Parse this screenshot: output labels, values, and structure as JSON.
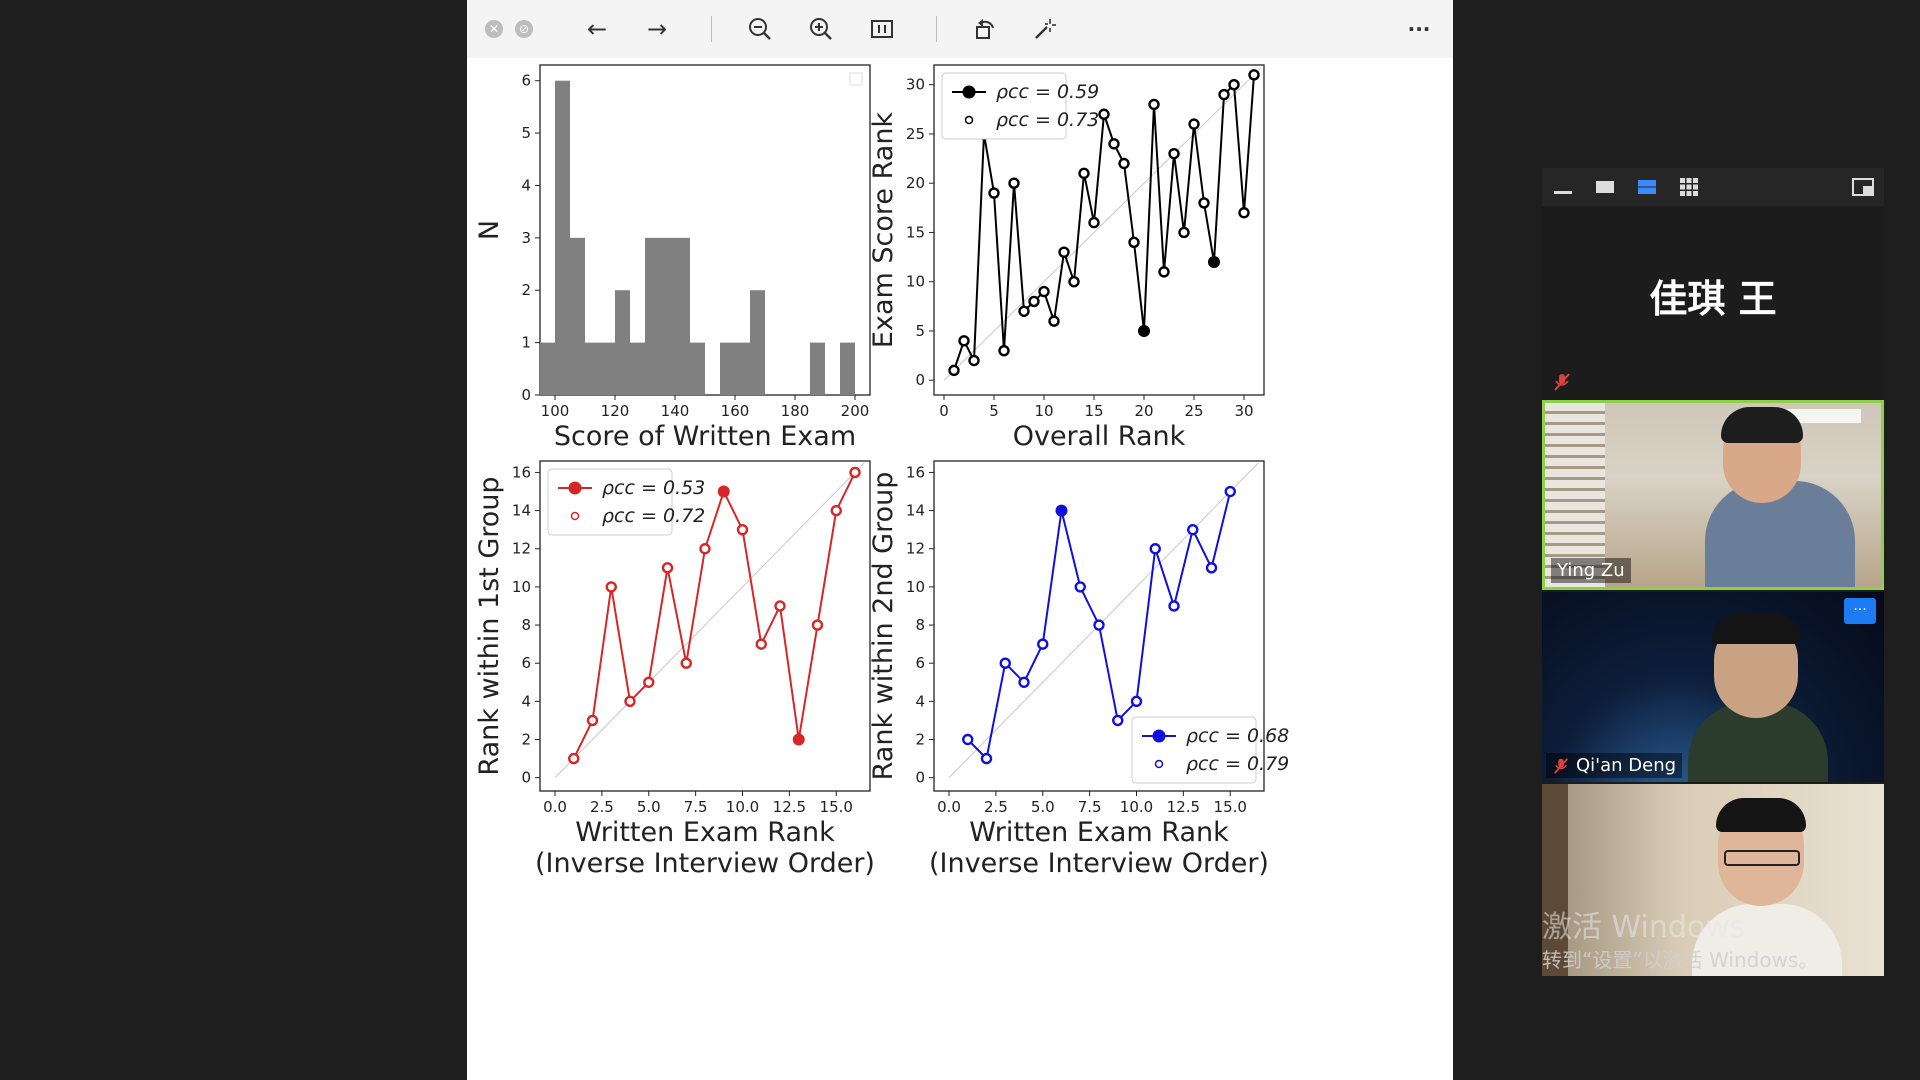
{
  "toolbar": {
    "items": [
      "close-window",
      "minimize-window",
      "back",
      "forward",
      "zoom-out",
      "zoom-in",
      "fit-page",
      "rotate",
      "magic-wand",
      "more"
    ],
    "more_glyph": "···"
  },
  "charts": {
    "histogram": {
      "type": "bar",
      "xlabel": "Score of Written Exam",
      "ylabel": "N",
      "xlim": [
        95,
        205
      ],
      "ylim": [
        0,
        6.3
      ],
      "xticks": [
        100,
        120,
        140,
        160,
        180,
        200
      ],
      "yticks": [
        0,
        1,
        2,
        3,
        4,
        5,
        6
      ],
      "bin_width": 5,
      "bins": [
        {
          "x": 95,
          "v": 1
        },
        {
          "x": 100,
          "v": 6
        },
        {
          "x": 105,
          "v": 3
        },
        {
          "x": 110,
          "v": 1
        },
        {
          "x": 115,
          "v": 1
        },
        {
          "x": 120,
          "v": 2
        },
        {
          "x": 125,
          "v": 1
        },
        {
          "x": 130,
          "v": 3
        },
        {
          "x": 135,
          "v": 3
        },
        {
          "x": 140,
          "v": 3
        },
        {
          "x": 145,
          "v": 1
        },
        {
          "x": 155,
          "v": 1
        },
        {
          "x": 160,
          "v": 1
        },
        {
          "x": 165,
          "v": 2
        },
        {
          "x": 185,
          "v": 1
        },
        {
          "x": 195,
          "v": 1
        }
      ],
      "color": "#808080"
    },
    "overall": {
      "type": "line",
      "xlabel": "Overall Rank",
      "ylabel": "Exam Score Rank",
      "xlim": [
        -1,
        32
      ],
      "ylim": [
        -1.5,
        32
      ],
      "xticks": [
        0,
        5,
        10,
        15,
        20,
        25,
        30
      ],
      "yticks": [
        0,
        5,
        10,
        15,
        20,
        25,
        30
      ],
      "x": [
        1,
        2,
        3,
        4,
        5,
        6,
        7,
        8,
        9,
        10,
        11,
        12,
        13,
        14,
        15,
        16,
        17,
        18,
        19,
        20,
        21,
        22,
        23,
        24,
        25,
        26,
        27,
        28,
        29,
        30,
        31
      ],
      "y": [
        1,
        4,
        2,
        25,
        19,
        3,
        20,
        7,
        8,
        9,
        6,
        13,
        10,
        21,
        16,
        27,
        24,
        22,
        14,
        5,
        28,
        11,
        23,
        15,
        26,
        18,
        12,
        29,
        30,
        17,
        31
      ],
      "filled": [
        4,
        20,
        27
      ],
      "color": "#000000",
      "legend": {
        "position": "top-left",
        "filled_label": "ρcc = 0.59",
        "open_label": "ρcc = 0.73"
      }
    },
    "group1": {
      "type": "line",
      "xlabel": "Written Exam Rank",
      "xlabel2": "(Inverse Interview Order)",
      "ylabel": "Rank within 1st Group",
      "xlim": [
        -0.8,
        16.8
      ],
      "ylim": [
        -0.7,
        16.6
      ],
      "xticks": [
        "0.0",
        "2.5",
        "5.0",
        "7.5",
        "10.0",
        "12.5",
        "15.0"
      ],
      "yticks": [
        0,
        2,
        4,
        6,
        8,
        10,
        12,
        14,
        16
      ],
      "x": [
        1,
        2,
        3,
        4,
        5,
        6,
        7,
        8,
        9,
        10,
        11,
        12,
        13,
        14,
        15,
        16
      ],
      "y": [
        1,
        3,
        10,
        4,
        5,
        11,
        6,
        12,
        15,
        13,
        7,
        9,
        2,
        8,
        14,
        16
      ],
      "filled": [
        9,
        13
      ],
      "color": "#d62728",
      "legend": {
        "position": "top-left",
        "filled_label": "ρcc = 0.53",
        "open_label": "ρcc = 0.72"
      }
    },
    "group2": {
      "type": "line",
      "xlabel": "Written Exam Rank",
      "xlabel2": "(Inverse Interview Order)",
      "ylabel": "Rank within 2nd Group",
      "xlim": [
        -0.8,
        16.8
      ],
      "ylim": [
        -0.7,
        16.6
      ],
      "xticks": [
        "0.0",
        "2.5",
        "5.0",
        "7.5",
        "10.0",
        "12.5",
        "15.0"
      ],
      "yticks": [
        0,
        2,
        4,
        6,
        8,
        10,
        12,
        14,
        16
      ],
      "x": [
        1,
        2,
        3,
        4,
        5,
        6,
        7,
        8,
        9,
        10,
        11,
        12,
        13,
        14,
        15
      ],
      "y": [
        2,
        1,
        6,
        5,
        7,
        14,
        10,
        8,
        3,
        4,
        12,
        9,
        13,
        11,
        15
      ],
      "filled": [
        6
      ],
      "color": "#1010dd",
      "legend": {
        "position": "bottom-right",
        "filled_label": "ρcc = 0.68",
        "open_label": "ρcc = 0.79"
      }
    }
  },
  "meeting": {
    "toolbar_items": [
      "minimize-icon",
      "speaker-view-icon",
      "gallery-strip-icon",
      "gallery-grid-icon",
      "exit-popout-icon"
    ],
    "participants": [
      {
        "name": "佳琪 王",
        "muted": true,
        "video": false
      },
      {
        "name": "Ying Zu",
        "muted": false,
        "video": true,
        "active_speaker": true
      },
      {
        "name": "Qi'an Deng",
        "muted": true,
        "video": true
      },
      {
        "name": "",
        "muted": false,
        "video": true
      }
    ],
    "more_button_glyph": "···"
  },
  "watermark": {
    "line1": "激活 Windows",
    "line2": "转到“设置”以激活 Windows。"
  }
}
